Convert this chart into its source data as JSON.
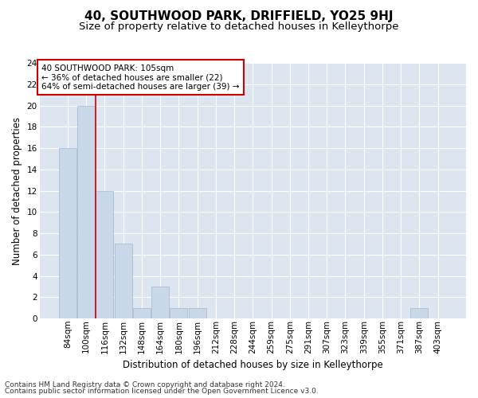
{
  "title": "40, SOUTHWOOD PARK, DRIFFIELD, YO25 9HJ",
  "subtitle": "Size of property relative to detached houses in Kelleythorpe",
  "xlabel": "Distribution of detached houses by size in Kelleythorpe",
  "ylabel": "Number of detached properties",
  "footnote1": "Contains HM Land Registry data © Crown copyright and database right 2024.",
  "footnote2": "Contains public sector information licensed under the Open Government Licence v3.0.",
  "annotation_line1": "40 SOUTHWOOD PARK: 105sqm",
  "annotation_line2": "← 36% of detached houses are smaller (22)",
  "annotation_line3": "64% of semi-detached houses are larger (39) →",
  "bar_labels": [
    "84sqm",
    "100sqm",
    "116sqm",
    "132sqm",
    "148sqm",
    "164sqm",
    "180sqm",
    "196sqm",
    "212sqm",
    "228sqm",
    "244sqm",
    "259sqm",
    "275sqm",
    "291sqm",
    "307sqm",
    "323sqm",
    "339sqm",
    "355sqm",
    "371sqm",
    "387sqm",
    "403sqm"
  ],
  "bar_values": [
    16,
    20,
    12,
    7,
    1,
    3,
    1,
    1,
    0,
    0,
    0,
    0,
    0,
    0,
    0,
    0,
    0,
    0,
    0,
    1,
    0
  ],
  "bar_color": "#c8d8e8",
  "bar_edge_color": "#a0b8cc",
  "vline_color": "#cc0000",
  "ylim": [
    0,
    24
  ],
  "yticks": [
    0,
    2,
    4,
    6,
    8,
    10,
    12,
    14,
    16,
    18,
    20,
    22,
    24
  ],
  "background_color": "#dde6f0",
  "grid_color": "#ffffff",
  "annotation_box_color": "#ffffff",
  "annotation_box_edge": "#cc0000",
  "title_fontsize": 11,
  "subtitle_fontsize": 9.5,
  "label_fontsize": 8.5,
  "tick_fontsize": 7.5,
  "footnote_fontsize": 6.5,
  "fig_bg": "#ffffff"
}
